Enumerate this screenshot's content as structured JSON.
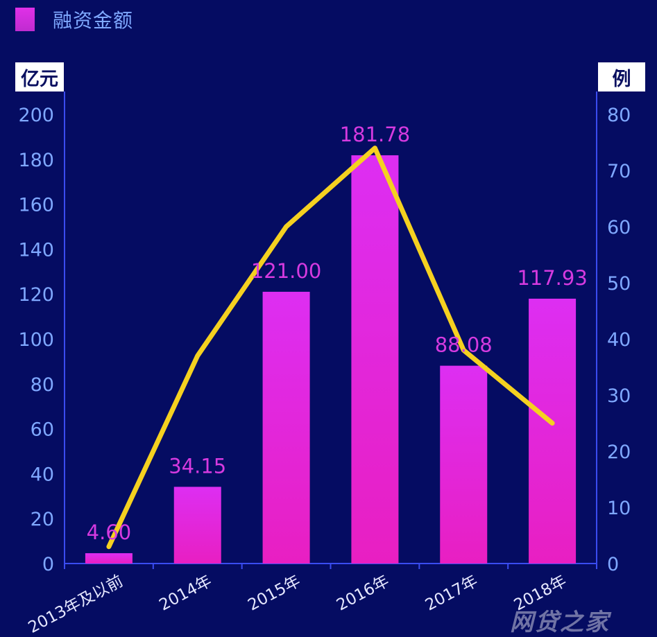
{
  "legend": {
    "label": "融资金额",
    "color": "#d62ad6"
  },
  "units": {
    "left": "亿元",
    "right": "例"
  },
  "watermark": "网贷之家",
  "chart_data": {
    "type": "bar",
    "categories": [
      "2013年及以前",
      "2014年",
      "2015年",
      "2016年",
      "2017年",
      "2018年"
    ],
    "series": [
      {
        "name": "融资金额",
        "type": "bar",
        "axis": "left",
        "values": [
          4.6,
          34.15,
          121.0,
          181.78,
          88.08,
          117.93
        ],
        "value_labels": [
          "4.60",
          "34.15",
          "121.00",
          "181.78",
          "88.08",
          "117.93"
        ],
        "color_top": "#dd2ef2",
        "color_bottom": "#e81fc2"
      },
      {
        "type": "line",
        "axis": "right",
        "values": [
          3,
          37,
          60,
          74,
          38,
          25
        ],
        "color": "#f5d120"
      }
    ],
    "y_left": {
      "ylim": [
        0,
        200
      ],
      "ticks": [
        "0",
        "20",
        "40",
        "60",
        "80",
        "100",
        "120",
        "140",
        "160",
        "180",
        "200"
      ]
    },
    "y_right": {
      "ylim": [
        0,
        80
      ],
      "ticks": [
        "0",
        "10",
        "20",
        "30",
        "40",
        "50",
        "60",
        "70",
        "80"
      ]
    },
    "grid": false,
    "legend_position": "top-left"
  }
}
